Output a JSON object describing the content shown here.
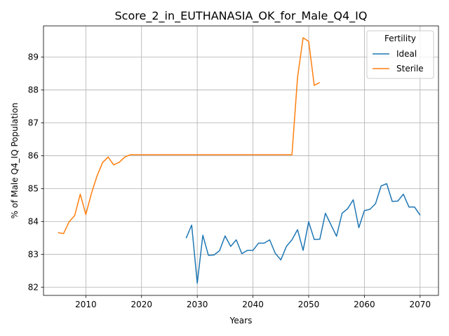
{
  "chart_data": {
    "type": "line",
    "title": "Score_2_in_EUTHANASIA_OK_for_Male_Q4_IQ",
    "xlabel": "Years",
    "ylabel": "% of Male Q4_IQ Population",
    "xlim": [
      2002.4,
      2073.3
    ],
    "ylim": [
      81.75,
      89.95
    ],
    "xticks": [
      2010,
      2020,
      2030,
      2040,
      2050,
      2060,
      2070
    ],
    "yticks": [
      82,
      83,
      84,
      85,
      86,
      87,
      88,
      89
    ],
    "grid": true,
    "legend": {
      "title": "Fertility",
      "placement": "top-right"
    },
    "series": [
      {
        "name": "Ideal",
        "color": "#1f77b4",
        "x": [
          2028,
          2029,
          2030,
          2031,
          2032,
          2033,
          2034,
          2035,
          2036,
          2037,
          2038,
          2039,
          2040,
          2041,
          2042,
          2043,
          2044,
          2045,
          2046,
          2047,
          2048,
          2049,
          2050,
          2051,
          2052,
          2053,
          2054,
          2055,
          2056,
          2057,
          2058,
          2059,
          2060,
          2061,
          2062,
          2063,
          2064,
          2065,
          2066,
          2067,
          2068,
          2069,
          2070
        ],
        "y": [
          83.49,
          83.89,
          82.12,
          83.58,
          82.97,
          82.98,
          83.11,
          83.56,
          83.24,
          83.44,
          83.02,
          83.12,
          83.12,
          83.34,
          83.34,
          83.44,
          83.03,
          82.83,
          83.24,
          83.44,
          83.75,
          83.12,
          83.99,
          83.45,
          83.46,
          84.25,
          83.9,
          83.55,
          84.25,
          84.39,
          84.66,
          83.81,
          84.33,
          84.37,
          84.54,
          85.08,
          85.15,
          84.61,
          84.62,
          84.83,
          84.44,
          84.44,
          84.19
        ]
      },
      {
        "name": "Sterile",
        "color": "#ff7f0e",
        "x": [
          2005,
          2006,
          2007,
          2008,
          2009,
          2010,
          2011,
          2012,
          2013,
          2014,
          2015,
          2016,
          2017,
          2018,
          2019,
          2020,
          2021,
          2022,
          2023,
          2024,
          2025,
          2026,
          2027,
          2028,
          2029,
          2030,
          2031,
          2032,
          2033,
          2034,
          2035,
          2036,
          2037,
          2038,
          2039,
          2040,
          2041,
          2042,
          2043,
          2044,
          2045,
          2046,
          2047,
          2048,
          2049,
          2050,
          2051,
          2052
        ],
        "y": [
          83.66,
          83.63,
          83.99,
          84.18,
          84.83,
          84.21,
          84.85,
          85.38,
          85.79,
          85.96,
          85.72,
          85.8,
          85.96,
          86.03,
          86.03,
          86.03,
          86.03,
          86.03,
          86.03,
          86.03,
          86.03,
          86.03,
          86.03,
          86.03,
          86.03,
          86.03,
          86.03,
          86.03,
          86.03,
          86.03,
          86.03,
          86.03,
          86.03,
          86.03,
          86.03,
          86.03,
          86.03,
          86.03,
          86.03,
          86.03,
          86.03,
          86.03,
          86.03,
          88.38,
          89.59,
          89.48,
          88.14,
          88.23
        ]
      }
    ]
  }
}
